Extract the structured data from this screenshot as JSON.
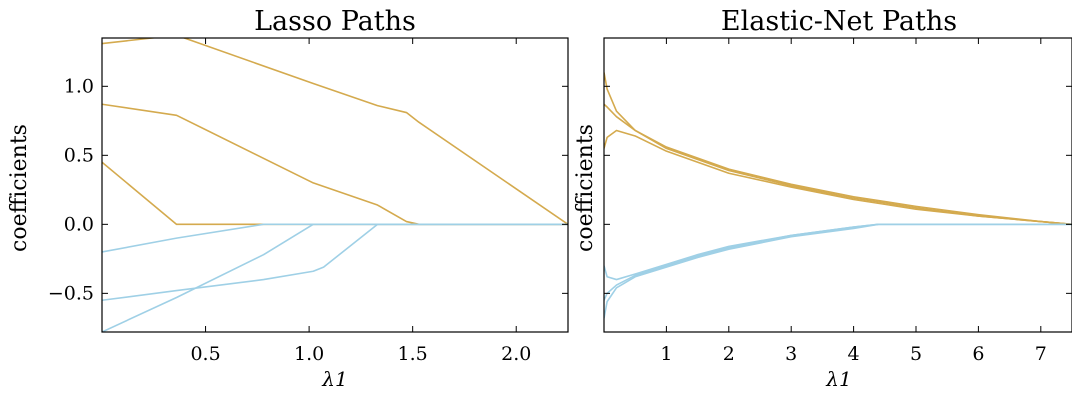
{
  "chart_data": [
    {
      "type": "line",
      "title": "Lasso Paths",
      "xlabel": "λ1",
      "ylabel": "coefficients",
      "xlim": [
        0.0,
        2.25
      ],
      "ylim": [
        -0.78,
        1.35
      ],
      "xticks": [
        0.5,
        1.0,
        1.5,
        2.0
      ],
      "xticklabels": [
        "0.5",
        "1.0",
        "1.5",
        "2.0"
      ],
      "yticks": [
        -0.5,
        0.0,
        0.5,
        1.0
      ],
      "yticklabels": [
        "−0.5",
        "0.0",
        "0.5",
        "1.0"
      ],
      "grid": false,
      "colors": {
        "positive": "#d4aa4e",
        "negative": "#9fd0e6"
      },
      "series": [
        {
          "group": "positive",
          "x": [
            0.0,
            0.36,
            1.02,
            1.33,
            1.47,
            1.53,
            2.25
          ],
          "y": [
            1.31,
            1.37,
            1.02,
            0.86,
            0.81,
            0.74,
            0.0
          ]
        },
        {
          "group": "positive",
          "x": [
            0.0,
            0.36,
            1.02,
            1.33,
            1.47,
            1.53,
            2.25
          ],
          "y": [
            0.87,
            0.79,
            0.3,
            0.14,
            0.02,
            0.0,
            0.0
          ]
        },
        {
          "group": "positive",
          "x": [
            0.0,
            0.36,
            2.25
          ],
          "y": [
            0.45,
            0.0,
            0.0
          ]
        },
        {
          "group": "negative",
          "x": [
            0.0,
            0.36,
            0.78,
            2.25
          ],
          "y": [
            -0.2,
            -0.1,
            0.0,
            0.0
          ]
        },
        {
          "group": "negative",
          "x": [
            0.0,
            0.36,
            0.78,
            1.02,
            1.07,
            2.25
          ],
          "y": [
            -0.78,
            -0.53,
            -0.22,
            0.0,
            0.0,
            0.0
          ]
        },
        {
          "group": "negative",
          "x": [
            0.0,
            0.36,
            0.78,
            1.02,
            1.07,
            1.33,
            2.25
          ],
          "y": [
            -0.55,
            -0.48,
            -0.4,
            -0.34,
            -0.31,
            0.0,
            0.0
          ]
        }
      ]
    },
    {
      "type": "line",
      "title": "Elastic-Net Paths",
      "xlabel": "λ1",
      "ylabel": "coefficients",
      "xlim": [
        0.0,
        7.5
      ],
      "ylim": [
        -0.78,
        1.35
      ],
      "xticks": [
        1,
        2,
        3,
        4,
        5,
        6,
        7
      ],
      "xticklabels": [
        "1",
        "2",
        "3",
        "4",
        "5",
        "6",
        "7"
      ],
      "yticks": [
        -0.5,
        0.0,
        0.5,
        1.0
      ],
      "grid": false,
      "colors": {
        "positive": "#d4aa4e",
        "negative": "#9fd0e6"
      },
      "series": [
        {
          "group": "positive",
          "x": [
            0.0,
            0.05,
            0.2,
            0.5,
            1.0,
            2.0,
            3.0,
            4.0,
            5.0,
            6.0,
            7.0,
            7.5
          ],
          "y": [
            1.1,
            0.98,
            0.82,
            0.68,
            0.55,
            0.39,
            0.28,
            0.19,
            0.12,
            0.06,
            0.02,
            0.0
          ]
        },
        {
          "group": "positive",
          "x": [
            0.0,
            0.05,
            0.2,
            0.5,
            1.0,
            2.0,
            3.0,
            4.0,
            5.0,
            6.0,
            7.0,
            7.5
          ],
          "y": [
            0.87,
            0.85,
            0.78,
            0.68,
            0.56,
            0.4,
            0.29,
            0.2,
            0.13,
            0.07,
            0.02,
            0.0
          ]
        },
        {
          "group": "positive",
          "x": [
            0.0,
            0.05,
            0.2,
            0.5,
            1.0,
            2.0,
            3.0,
            4.0,
            5.0,
            6.0,
            7.0,
            7.5
          ],
          "y": [
            0.55,
            0.63,
            0.68,
            0.64,
            0.53,
            0.37,
            0.27,
            0.18,
            0.11,
            0.06,
            0.02,
            0.0
          ]
        },
        {
          "group": "negative",
          "x": [
            0.0,
            0.05,
            0.2,
            0.5,
            1.0,
            1.5,
            2.0,
            3.0,
            4.0,
            4.4,
            7.5
          ],
          "y": [
            -0.3,
            -0.38,
            -0.4,
            -0.36,
            -0.29,
            -0.22,
            -0.16,
            -0.08,
            -0.02,
            0.0,
            0.0
          ]
        },
        {
          "group": "negative",
          "x": [
            0.0,
            0.05,
            0.2,
            0.5,
            1.0,
            1.5,
            2.0,
            3.0,
            4.0,
            4.4,
            7.5
          ],
          "y": [
            -0.55,
            -0.5,
            -0.44,
            -0.37,
            -0.3,
            -0.23,
            -0.17,
            -0.08,
            -0.02,
            0.0,
            0.0
          ]
        },
        {
          "group": "negative",
          "x": [
            0.0,
            0.05,
            0.2,
            0.5,
            1.0,
            1.5,
            2.0,
            3.0,
            4.0,
            4.4,
            7.5
          ],
          "y": [
            -0.68,
            -0.56,
            -0.46,
            -0.38,
            -0.31,
            -0.24,
            -0.18,
            -0.09,
            -0.03,
            0.0,
            0.0
          ]
        }
      ]
    }
  ]
}
